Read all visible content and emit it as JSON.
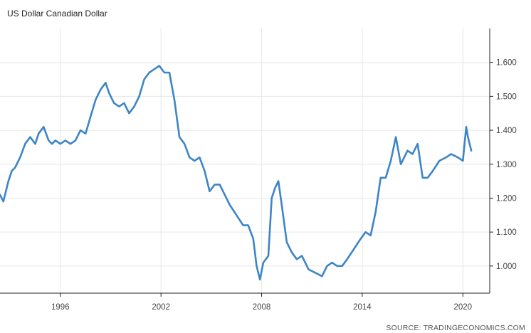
{
  "source": "SOURCE: TRADINGECONOMICS.COM",
  "chart_data": {
    "type": "line",
    "title": "US Dollar Canadian Dollar",
    "xlabel": "",
    "ylabel": "",
    "x_ticks": [
      "1996",
      "2002",
      "2008",
      "2014",
      "2020"
    ],
    "y_ticks": [
      "1.000",
      "1.100",
      "1.200",
      "1.300",
      "1.400",
      "1.500",
      "1.600"
    ],
    "xlim": [
      1992.4,
      2021.6
    ],
    "ylim": [
      0.92,
      1.7
    ],
    "grid": true,
    "y_axis_position": "right",
    "colors": {
      "line": "#3d85c6",
      "grid": "#e6e6e6",
      "axis": "#222222"
    },
    "series": [
      {
        "x": [
          1992.4,
          1992.6,
          1992.9,
          1993.1,
          1993.3,
          1993.6,
          1993.9,
          1994.2,
          1994.5,
          1994.7,
          1995.0,
          1995.3,
          1995.5,
          1995.7,
          1996.0,
          1996.3,
          1996.6,
          1996.9,
          1997.2,
          1997.5,
          1997.8,
          1998.1,
          1998.4,
          1998.7,
          1998.9,
          1999.2,
          1999.5,
          1999.8,
          2000.1,
          2000.4,
          2000.7,
          2001.0,
          2001.3,
          2001.6,
          2001.9,
          2002.2,
          2002.5,
          2002.8,
          2003.1,
          2003.4,
          2003.7,
          2004.0,
          2004.3,
          2004.6,
          2004.9,
          2005.2,
          2005.5,
          2005.8,
          2006.1,
          2006.5,
          2006.9,
          2007.2,
          2007.5,
          2007.7,
          2007.9,
          2008.1,
          2008.4,
          2008.6,
          2008.8,
          2009.0,
          2009.2,
          2009.5,
          2009.8,
          2010.1,
          2010.4,
          2010.8,
          2011.2,
          2011.6,
          2011.9,
          2012.2,
          2012.5,
          2012.8,
          2013.1,
          2013.5,
          2013.9,
          2014.2,
          2014.5,
          2014.8,
          2015.1,
          2015.4,
          2015.7,
          2016.0,
          2016.3,
          2016.7,
          2017.0,
          2017.3,
          2017.6,
          2017.9,
          2018.2,
          2018.6,
          2019.0,
          2019.3,
          2019.7,
          2020.0,
          2020.2,
          2020.3,
          2020.5
        ],
        "y": [
          1.21,
          1.19,
          1.25,
          1.28,
          1.29,
          1.32,
          1.36,
          1.38,
          1.36,
          1.39,
          1.41,
          1.37,
          1.36,
          1.37,
          1.36,
          1.37,
          1.36,
          1.37,
          1.4,
          1.39,
          1.44,
          1.49,
          1.52,
          1.54,
          1.51,
          1.48,
          1.47,
          1.48,
          1.45,
          1.47,
          1.5,
          1.55,
          1.57,
          1.58,
          1.59,
          1.57,
          1.57,
          1.49,
          1.38,
          1.36,
          1.32,
          1.31,
          1.32,
          1.28,
          1.22,
          1.24,
          1.24,
          1.21,
          1.18,
          1.15,
          1.12,
          1.12,
          1.08,
          1.0,
          0.96,
          1.01,
          1.03,
          1.2,
          1.23,
          1.25,
          1.18,
          1.07,
          1.04,
          1.02,
          1.03,
          0.99,
          0.98,
          0.97,
          1.0,
          1.01,
          1.0,
          1.0,
          1.02,
          1.05,
          1.08,
          1.1,
          1.09,
          1.16,
          1.26,
          1.26,
          1.31,
          1.38,
          1.3,
          1.34,
          1.33,
          1.36,
          1.26,
          1.26,
          1.28,
          1.31,
          1.32,
          1.33,
          1.32,
          1.31,
          1.41,
          1.38,
          1.34
        ]
      }
    ]
  }
}
